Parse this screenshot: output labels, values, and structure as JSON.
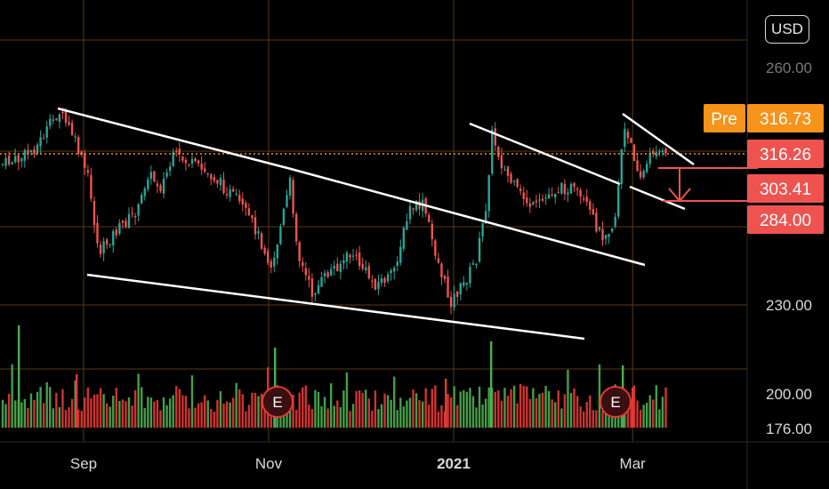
{
  "header": {
    "currency": "USD"
  },
  "chart_data": {
    "type": "candlestick",
    "price_axis": {
      "ticks": [
        {
          "value": 260,
          "label": "260.00"
        },
        {
          "value": 230,
          "label": "230.00"
        },
        {
          "value": 200,
          "label": "200.00"
        },
        {
          "value": 176,
          "label": "176.00"
        }
      ]
    },
    "time_axis": {
      "ticks": [
        {
          "date": "2020-09-01",
          "label": "Sep",
          "bold": false
        },
        {
          "date": "2020-11-01",
          "label": "Nov",
          "bold": false
        },
        {
          "date": "2021-01-01",
          "label": "2021",
          "bold": true
        },
        {
          "date": "2021-03-01",
          "label": "Mar",
          "bold": false
        }
      ]
    },
    "price_labels": [
      {
        "name": "premarket",
        "tag": "Pre",
        "value": 316.73,
        "label": "316.73",
        "color": "#f7931a"
      },
      {
        "name": "last",
        "value": 316.26,
        "label": "316.26",
        "color": "#ef5350"
      },
      {
        "name": "level-1",
        "value": 303.41,
        "label": "303.41",
        "color": "#ef5350"
      },
      {
        "name": "level-2",
        "value": 284.0,
        "label": "284.00",
        "color": "#ef5350"
      }
    ],
    "earnings_markers": [
      {
        "date": "2020-10-30",
        "label": "E"
      },
      {
        "date": "2021-02-26",
        "label": "E"
      }
    ],
    "colors": {
      "up": "#26a69a",
      "down": "#ef5350",
      "volume_up": "#4caf50",
      "volume_down": "#e53935",
      "grid": "#5a3a12",
      "trendline": "#ffffff"
    },
    "grid": true
  }
}
